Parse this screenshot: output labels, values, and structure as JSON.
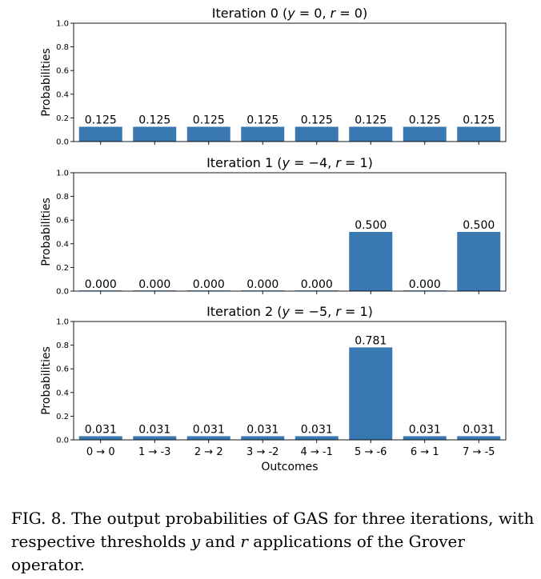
{
  "chart_data": [
    {
      "type": "bar",
      "title": "Iteration 0 (y = 0, r = 0)",
      "title_parts": [
        "Iteration 0 (",
        "y",
        " = 0, ",
        "r",
        " = 0)"
      ],
      "ylabel": "Probabilities",
      "xlabel": "",
      "categories": [
        "0 → 0",
        "1 → -3",
        "2 → 2",
        "3 → -2",
        "4 → -1",
        "5 → -6",
        "6 → 1",
        "7 → -5"
      ],
      "show_category_labels": false,
      "values": [
        0.125,
        0.125,
        0.125,
        0.125,
        0.125,
        0.125,
        0.125,
        0.125
      ],
      "value_labels": [
        "0.125",
        "0.125",
        "0.125",
        "0.125",
        "0.125",
        "0.125",
        "0.125",
        "0.125"
      ],
      "ylim": [
        0,
        1.0
      ],
      "yticks": [
        "0.0",
        "0.2",
        "0.4",
        "0.6",
        "0.8",
        "1.0"
      ],
      "color": "#3a78b2",
      "grid": false
    },
    {
      "type": "bar",
      "title": "Iteration 1 (y = −4, r = 1)",
      "title_parts": [
        "Iteration 1 (",
        "y",
        " = −4, ",
        "r",
        " = 1)"
      ],
      "ylabel": "Probabilities",
      "xlabel": "",
      "categories": [
        "0 → 0",
        "1 → -3",
        "2 → 2",
        "3 → -2",
        "4 → -1",
        "5 → -6",
        "6 → 1",
        "7 → -5"
      ],
      "show_category_labels": false,
      "values": [
        0.0,
        0.0,
        0.0,
        0.0,
        0.0,
        0.5,
        0.0,
        0.5
      ],
      "value_labels": [
        "0.000",
        "0.000",
        "0.000",
        "0.000",
        "0.000",
        "0.500",
        "0.000",
        "0.500"
      ],
      "ylim": [
        0,
        1.0
      ],
      "yticks": [
        "0.0",
        "0.2",
        "0.4",
        "0.6",
        "0.8",
        "1.0"
      ],
      "color": "#3a78b2",
      "grid": false
    },
    {
      "type": "bar",
      "title": "Iteration 2 (y = −5, r = 1)",
      "title_parts": [
        "Iteration 2 (",
        "y",
        " = −5, ",
        "r",
        " = 1)"
      ],
      "ylabel": "Probabilities",
      "xlabel": "Outcomes",
      "categories": [
        "0 → 0",
        "1 → -3",
        "2 → 2",
        "3 → -2",
        "4 → -1",
        "5 → -6",
        "6 → 1",
        "7 → -5"
      ],
      "show_category_labels": true,
      "values": [
        0.031,
        0.031,
        0.031,
        0.031,
        0.031,
        0.781,
        0.031,
        0.031
      ],
      "value_labels": [
        "0.031",
        "0.031",
        "0.031",
        "0.031",
        "0.031",
        "0.781",
        "0.031",
        "0.031"
      ],
      "ylim": [
        0,
        1.0
      ],
      "yticks": [
        "0.0",
        "0.2",
        "0.4",
        "0.6",
        "0.8",
        "1.0"
      ],
      "color": "#3a78b2",
      "grid": false
    }
  ],
  "caption": {
    "prefix": "FIG. 8. The output probabilities of GAS for three iterations, with respective thresholds ",
    "var_y": "y",
    "middle": " and ",
    "var_r": "r",
    "suffix": " applications of the Grover operator."
  }
}
